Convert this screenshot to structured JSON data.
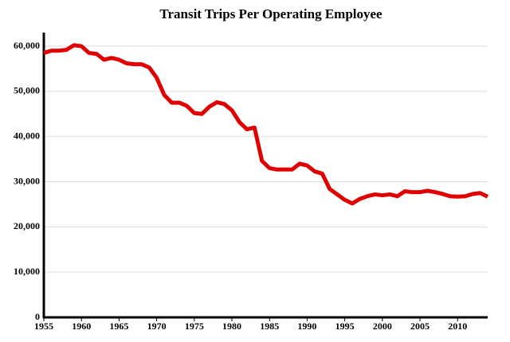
{
  "chart_data": {
    "type": "line",
    "title": "Transit Trips Per Operating Employee",
    "x": [
      1955,
      1956,
      1957,
      1958,
      1959,
      1960,
      1961,
      1962,
      1963,
      1964,
      1965,
      1966,
      1967,
      1968,
      1969,
      1970,
      1971,
      1972,
      1973,
      1974,
      1975,
      1976,
      1977,
      1978,
      1979,
      1980,
      1981,
      1982,
      1983,
      1984,
      1985,
      1986,
      1987,
      1988,
      1989,
      1990,
      1991,
      1992,
      1993,
      1994,
      1995,
      1996,
      1997,
      1998,
      1999,
      2000,
      2001,
      2002,
      2003,
      2004,
      2005,
      2006,
      2007,
      2008,
      2009,
      2010,
      2011,
      2012,
      2013,
      2014
    ],
    "values": [
      58500,
      59000,
      59000,
      59200,
      60200,
      60000,
      58500,
      58300,
      57000,
      57400,
      57000,
      56200,
      56000,
      56000,
      55300,
      53000,
      49200,
      47500,
      47500,
      46800,
      45200,
      45000,
      46600,
      47600,
      47200,
      45800,
      43200,
      41600,
      42000,
      34600,
      33000,
      32700,
      32700,
      32700,
      34000,
      33600,
      32300,
      31800,
      28400,
      27200,
      26000,
      25200,
      26200,
      26800,
      27200,
      27000,
      27200,
      26800,
      27900,
      27700,
      27700,
      28000,
      27700,
      27300,
      26800,
      26700,
      26800,
      27300,
      27500,
      26700
    ],
    "color": "#e00000",
    "xlim": [
      1955,
      2014
    ],
    "xticks": [
      1955,
      1960,
      1965,
      1970,
      1975,
      1980,
      1985,
      1990,
      1995,
      2000,
      2005,
      2010
    ],
    "ylim": [
      0,
      63000
    ],
    "yticks": [
      0,
      {
        "value": 10000,
        "label": "10,000"
      },
      {
        "value": 20000,
        "label": "20,000"
      },
      {
        "value": 30000,
        "label": "30,000"
      },
      {
        "value": 40000,
        "label": "40,000"
      },
      {
        "value": 50000,
        "label": "50,000"
      },
      {
        "value": 60000,
        "label": "60,000"
      }
    ],
    "grid": true
  }
}
